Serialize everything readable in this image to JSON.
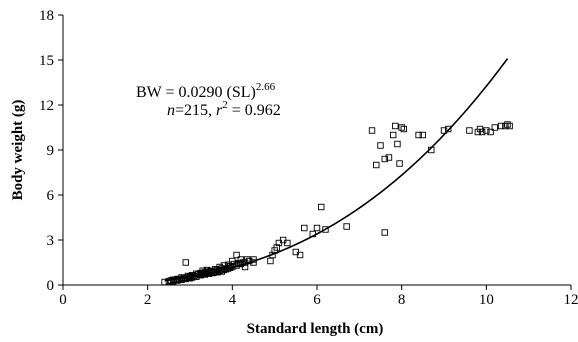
{
  "chart_data": {
    "type": "scatter",
    "xlabel": "Standard length (cm)",
    "ylabel": "Body weight  (g)",
    "xlim": [
      0,
      12
    ],
    "ylim": [
      0,
      18
    ],
    "xticks": [
      0,
      2,
      4,
      6,
      8,
      10,
      12
    ],
    "yticks": [
      0,
      3,
      6,
      9,
      12,
      15,
      18
    ],
    "xtick_labels": [
      "0",
      "2",
      "4",
      "6",
      "8",
      "10",
      "12"
    ],
    "ytick_labels": [
      "0",
      "3",
      "6",
      "9",
      "12",
      "15",
      "18"
    ],
    "grid": false,
    "marker": "open-square",
    "annotations": {
      "eq_lhs": "BW = 0.0290 (SL)",
      "eq_exp": "2.66",
      "n_label": "n",
      "n_value": "=215, ",
      "r_label": "r",
      "r_exp": "2",
      "r_value": " = 0.962"
    },
    "fit": {
      "a": 0.029,
      "b": 2.66,
      "x_range": [
        2.4,
        10.5
      ]
    },
    "points": [
      [
        2.4,
        0.2
      ],
      [
        2.5,
        0.25
      ],
      [
        2.55,
        0.3
      ],
      [
        2.6,
        0.25
      ],
      [
        2.65,
        0.35
      ],
      [
        2.7,
        0.3
      ],
      [
        2.75,
        0.4
      ],
      [
        2.8,
        0.35
      ],
      [
        2.85,
        0.45
      ],
      [
        2.9,
        0.4
      ],
      [
        2.95,
        0.5
      ],
      [
        3.0,
        0.45
      ],
      [
        3.0,
        0.55
      ],
      [
        3.05,
        0.5
      ],
      [
        3.1,
        0.6
      ],
      [
        3.15,
        0.55
      ],
      [
        3.2,
        0.7
      ],
      [
        3.25,
        0.65
      ],
      [
        3.3,
        0.75
      ],
      [
        3.35,
        0.7
      ],
      [
        3.4,
        0.8
      ],
      [
        3.45,
        0.75
      ],
      [
        3.5,
        0.85
      ],
      [
        3.55,
        0.8
      ],
      [
        3.6,
        0.9
      ],
      [
        3.65,
        0.85
      ],
      [
        3.7,
        0.95
      ],
      [
        3.75,
        0.9
      ],
      [
        3.8,
        1.0
      ],
      [
        3.85,
        1.05
      ],
      [
        3.9,
        1.1
      ],
      [
        3.95,
        1.15
      ],
      [
        4.0,
        1.2
      ],
      [
        4.1,
        1.3
      ],
      [
        4.2,
        1.4
      ],
      [
        4.3,
        1.5
      ],
      [
        4.4,
        1.6
      ],
      [
        4.5,
        1.7
      ],
      [
        3.3,
        0.95
      ],
      [
        3.6,
        1.05
      ],
      [
        3.9,
        1.35
      ],
      [
        4.0,
        1.6
      ],
      [
        4.1,
        2.0
      ],
      [
        4.3,
        1.2
      ],
      [
        2.9,
        1.5
      ],
      [
        3.4,
        1.0
      ],
      [
        3.7,
        1.2
      ],
      [
        3.8,
        1.3
      ],
      [
        4.2,
        1.7
      ],
      [
        4.5,
        1.5
      ],
      [
        4.9,
        1.6
      ],
      [
        4.95,
        2.0
      ],
      [
        5.0,
        2.3
      ],
      [
        5.05,
        2.5
      ],
      [
        5.1,
        2.8
      ],
      [
        5.2,
        3.0
      ],
      [
        5.3,
        2.8
      ],
      [
        5.5,
        2.2
      ],
      [
        5.6,
        2.0
      ],
      [
        5.7,
        3.8
      ],
      [
        5.9,
        3.4
      ],
      [
        6.0,
        3.8
      ],
      [
        6.1,
        5.2
      ],
      [
        6.2,
        3.7
      ],
      [
        6.7,
        3.9
      ],
      [
        7.3,
        10.3
      ],
      [
        7.4,
        8.0
      ],
      [
        7.5,
        9.3
      ],
      [
        7.6,
        3.5
      ],
      [
        7.6,
        8.4
      ],
      [
        7.7,
        8.5
      ],
      [
        7.8,
        10.0
      ],
      [
        7.85,
        10.6
      ],
      [
        7.9,
        9.4
      ],
      [
        8.0,
        10.5
      ],
      [
        8.05,
        10.4
      ],
      [
        7.95,
        8.1
      ],
      [
        8.4,
        10.0
      ],
      [
        8.5,
        10.0
      ],
      [
        8.7,
        9.0
      ],
      [
        9.0,
        10.3
      ],
      [
        9.1,
        10.4
      ],
      [
        9.6,
        10.3
      ],
      [
        9.8,
        10.2
      ],
      [
        9.85,
        10.4
      ],
      [
        9.9,
        10.2
      ],
      [
        10.0,
        10.3
      ],
      [
        10.1,
        10.2
      ],
      [
        10.2,
        10.5
      ],
      [
        10.35,
        10.6
      ],
      [
        10.45,
        10.6
      ],
      [
        10.5,
        10.7
      ],
      [
        10.55,
        10.6
      ],
      [
        2.7,
        0.4
      ],
      [
        2.8,
        0.5
      ],
      [
        2.95,
        0.6
      ],
      [
        3.15,
        0.75
      ],
      [
        3.35,
        0.85
      ],
      [
        3.5,
        0.95
      ],
      [
        3.75,
        1.1
      ],
      [
        4.05,
        1.4
      ],
      [
        4.25,
        1.5
      ],
      [
        4.35,
        1.7
      ],
      [
        2.6,
        0.35
      ],
      [
        3.05,
        0.65
      ],
      [
        3.25,
        0.8
      ],
      [
        3.45,
        0.9
      ],
      [
        3.65,
        1.0
      ],
      [
        3.95,
        1.25
      ],
      [
        4.15,
        1.45
      ]
    ]
  }
}
